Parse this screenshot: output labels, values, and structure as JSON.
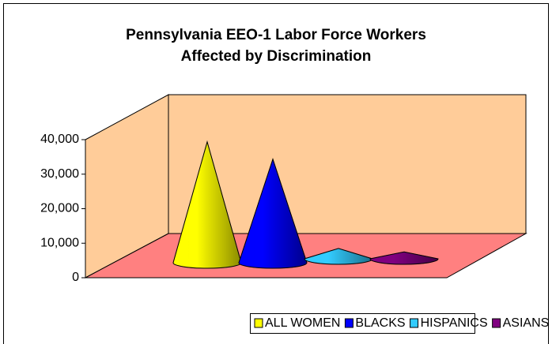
{
  "chart_data": {
    "type": "cone",
    "title": [
      "Pennsylvania EEO-1 Labor Force Workers",
      "Affected by Discrimination"
    ],
    "categories": [
      "ALL WOMEN",
      "BLACKS",
      "HISPANICS",
      "ASIANS"
    ],
    "values": [
      35000,
      30000,
      3000,
      2000
    ],
    "colors": [
      "#ffff00",
      "#0000ff",
      "#33ccff",
      "#800080"
    ],
    "ylim": [
      0,
      40000
    ],
    "yticks": [
      {
        "value": 0,
        "label": "0"
      },
      {
        "value": 10000,
        "label": "10,000"
      },
      {
        "value": 20000,
        "label": "20,000"
      },
      {
        "value": 30000,
        "label": "30,000"
      },
      {
        "value": 40000,
        "label": "40,000"
      }
    ],
    "legend": "bottom"
  }
}
